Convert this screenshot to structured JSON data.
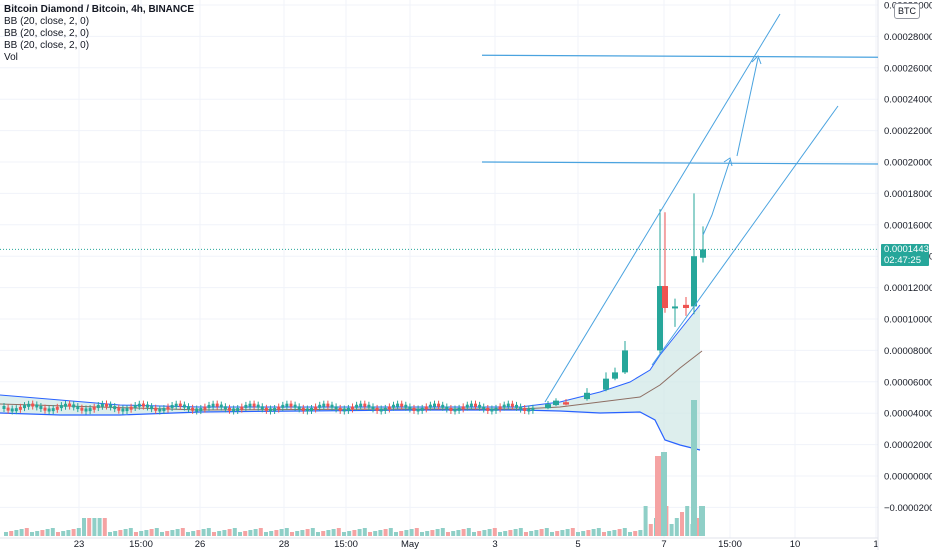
{
  "legend": {
    "symbol": "Bitcoin Diamond / Bitcoin, 4h, BINANCE",
    "indicators": [
      "BB (20, close, 2, 0)",
      "BB (20, close, 2, 0)",
      "BB (20, close, 2, 0)",
      "Vol"
    ]
  },
  "badge": "BTC",
  "last_price": {
    "value": "0.00014433",
    "countdown": "02:47:25"
  },
  "colors": {
    "up": "#26a69a",
    "down": "#ef5350",
    "band": "#2962ff",
    "basis": "#8d6e63",
    "drawing": "#4aa3df",
    "fill": "#cfe7e6"
  },
  "chart_data": {
    "type": "candlestick",
    "yaxis": {
      "min": -2e-05,
      "max": 0.0003,
      "ticks": [
        -2e-05,
        0.0,
        2e-05,
        4e-05,
        6e-05,
        8e-05,
        0.0001,
        0.00012,
        0.00014,
        0.00016,
        0.00018,
        0.0002,
        0.00022,
        0.00024,
        0.00026,
        0.00028,
        0.0003
      ],
      "tick_labels": [
        "−0.00002000",
        "0.00000000",
        "0.00002000",
        "0.00004000",
        "0.00006000",
        "0.00008000",
        "0.00010000",
        "0.00012000",
        "0.00014000",
        "0.00016000",
        "0.00018000",
        "0.00020000",
        "0.00022000",
        "0.00024000",
        "0.00026000",
        "0.00028000",
        "0.00030000"
      ]
    },
    "xaxis": {
      "tick_labels": [
        "23",
        "15:00",
        "26",
        "28",
        "15:00",
        "May",
        "3",
        "5",
        "7",
        "15:00",
        "10",
        "1"
      ]
    },
    "candles_up": [
      {
        "t": "May 5 a",
        "o": 4.32e-05,
        "c": 4.58e-05,
        "h": 4.78e-05,
        "l": 4.25e-05
      },
      {
        "t": "May 5 b",
        "o": 4.52e-05,
        "c": 4.8e-05,
        "h": 4.95e-05,
        "l": 4.45e-05
      },
      {
        "t": "May 6 a",
        "o": 4.9e-05,
        "c": 5.3e-05,
        "h": 5.6e-05,
        "l": 4.8e-05
      },
      {
        "t": "May 6 b",
        "o": 5.5e-05,
        "c": 6.2e-05,
        "h": 6.6e-05,
        "l": 5.4e-05
      },
      {
        "t": "May 6 c",
        "o": 6.2e-05,
        "c": 6.6e-05,
        "h": 6.9e-05,
        "l": 6.1e-05
      },
      {
        "t": "May 7 a",
        "o": 6.6e-05,
        "c": 8e-05,
        "h": 8.6e-05,
        "l": 6.5e-05
      },
      {
        "t": "May 7 b",
        "o": 8e-05,
        "c": 0.000121,
        "h": 0.00017,
        "l": 7.8e-05
      },
      {
        "t": "May 8 a",
        "o": 0.000107,
        "c": 0.000108,
        "h": 0.000113,
        "l": 9.5e-05
      },
      {
        "t": "May 8 b",
        "o": 0.000108,
        "c": 0.00014,
        "h": 0.00018,
        "l": 0.000103
      },
      {
        "t": "May 8 c",
        "o": 0.000139,
        "c": 0.00014433,
        "h": 0.000159,
        "l": 0.000136
      }
    ],
    "candles_down": [
      {
        "t": "May 5 c",
        "o": 4.7e-05,
        "c": 4.55e-05,
        "h": 4.9e-05,
        "l": 4.5e-05
      },
      {
        "t": "May 7 c",
        "o": 0.000121,
        "c": 0.000107,
        "h": 0.000168,
        "l": 0.000104
      },
      {
        "t": "May 8 d",
        "o": 0.000109,
        "c": 0.000107,
        "h": 0.000114,
        "l": 0.000102
      }
    ],
    "levels": [
      0.0002,
      0.000268
    ],
    "last": 0.00014433
  }
}
